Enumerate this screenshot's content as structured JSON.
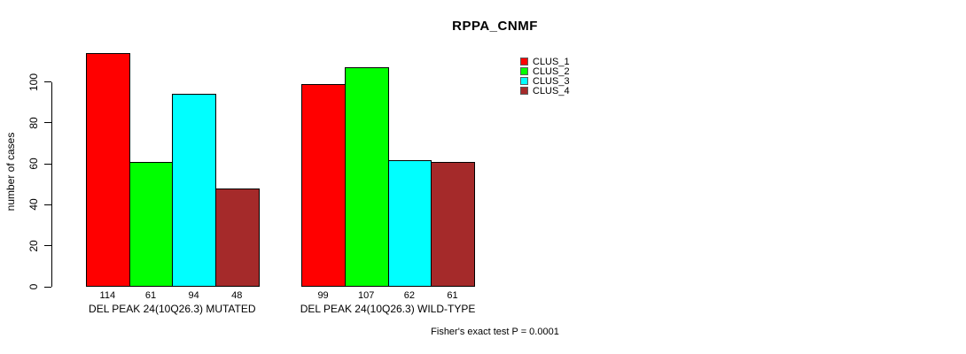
{
  "chart_data": {
    "type": "bar",
    "title": "RPPA_CNMF",
    "xlabel": "",
    "ylabel": "number of cases",
    "ylim": [
      0,
      114
    ],
    "yticks": [
      0,
      20,
      40,
      60,
      80,
      100
    ],
    "grid": false,
    "legend_position": "top-right",
    "categories": [
      "DEL PEAK 24(10Q26.3) MUTATED",
      "DEL PEAK 24(10Q26.3) WILD-TYPE"
    ],
    "series": [
      {
        "name": "CLUS_1",
        "color": "#ff0000",
        "values": [
          114,
          99
        ]
      },
      {
        "name": "CLUS_2",
        "color": "#00ff00",
        "values": [
          61,
          107
        ]
      },
      {
        "name": "CLUS_3",
        "color": "#00ffff",
        "values": [
          94,
          62
        ]
      },
      {
        "name": "CLUS_4",
        "color": "#a52a2a",
        "values": [
          48,
          61
        ]
      }
    ],
    "bar_value_labels": [
      [
        "114",
        "61",
        "94",
        "48"
      ],
      [
        "99",
        "107",
        "62",
        "61"
      ]
    ],
    "annotation": "Fisher's exact test P = 0.0001"
  },
  "colors": {
    "background": "#ffffff",
    "axis": "#000000",
    "text": "#000000"
  }
}
